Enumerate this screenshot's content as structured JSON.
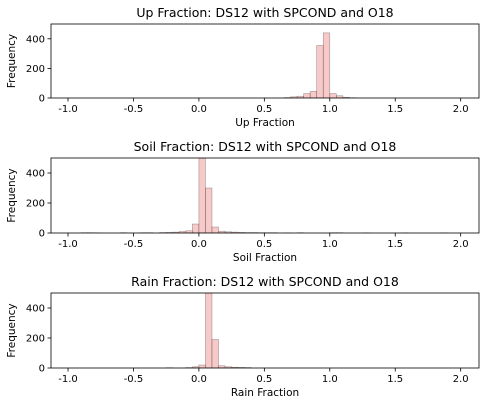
{
  "chart_data": [
    {
      "type": "bar",
      "title": "Up Fraction: DS12 with SPCOND and O18",
      "xlabel": "Up Fraction",
      "ylabel": "Frequency",
      "xlim": [
        -1.13,
        2.14
      ],
      "ylim": [
        0,
        500
      ],
      "xticks": [
        "-1.0",
        "-0.5",
        "0.0",
        "0.5",
        "1.0",
        "1.5",
        "2.0"
      ],
      "yticks": [
        "0",
        "200",
        "400"
      ],
      "bin_width": 0.05,
      "series": [
        {
          "bins": [
            [
              0.65,
              3
            ],
            [
              0.7,
              8
            ],
            [
              0.75,
              12
            ],
            [
              0.8,
              30
            ],
            [
              0.85,
              45
            ],
            [
              0.9,
              355
            ],
            [
              0.95,
              440
            ],
            [
              1.0,
              30
            ],
            [
              1.05,
              15
            ],
            [
              1.1,
              5
            ],
            [
              1.15,
              2
            ]
          ]
        }
      ],
      "bar_color": "#f4a5a5"
    },
    {
      "type": "bar",
      "title": "Soil Fraction: DS12 with SPCOND and O18",
      "xlabel": "Soil Fraction",
      "ylabel": "Frequency",
      "xlim": [
        -1.13,
        2.14
      ],
      "ylim": [
        0,
        500
      ],
      "xticks": [
        "-1.0",
        "-0.5",
        "0.0",
        "0.5",
        "1.0",
        "1.5",
        "2.0"
      ],
      "yticks": [
        "0",
        "200",
        "400"
      ],
      "bin_width": 0.05,
      "series": [
        {
          "bins": [
            [
              -0.9,
              2
            ],
            [
              -0.85,
              2
            ],
            [
              -0.8,
              1
            ],
            [
              -0.6,
              2
            ],
            [
              -0.45,
              2
            ],
            [
              -0.4,
              2
            ],
            [
              -0.3,
              3
            ],
            [
              -0.25,
              4
            ],
            [
              -0.2,
              6
            ],
            [
              -0.15,
              10
            ],
            [
              -0.1,
              15
            ],
            [
              -0.05,
              60
            ],
            [
              0.0,
              500
            ],
            [
              0.05,
              300
            ],
            [
              0.1,
              40
            ],
            [
              0.15,
              12
            ],
            [
              0.2,
              8
            ],
            [
              0.25,
              6
            ],
            [
              0.3,
              4
            ],
            [
              0.35,
              3
            ],
            [
              0.4,
              3
            ],
            [
              0.45,
              2
            ],
            [
              0.5,
              2
            ],
            [
              0.55,
              2
            ],
            [
              0.65,
              1
            ],
            [
              0.75,
              2
            ],
            [
              1.0,
              2
            ],
            [
              1.05,
              2
            ],
            [
              1.25,
              1
            ],
            [
              1.55,
              1
            ],
            [
              1.85,
              1
            ]
          ]
        }
      ],
      "bar_color": "#f4a5a5"
    },
    {
      "type": "bar",
      "title": "Rain Fraction: DS12 with SPCOND and O18",
      "xlabel": "Rain Fraction",
      "ylabel": "Frequency",
      "xlim": [
        -1.13,
        2.14
      ],
      "ylim": [
        0,
        500
      ],
      "xticks": [
        "-1.0",
        "-0.5",
        "0.0",
        "0.5",
        "1.0",
        "1.5",
        "2.0"
      ],
      "yticks": [
        "0",
        "200",
        "400"
      ],
      "bin_width": 0.05,
      "series": [
        {
          "bins": [
            [
              -0.25,
              2
            ],
            [
              -0.1,
              3
            ],
            [
              -0.05,
              8
            ],
            [
              0.0,
              20
            ],
            [
              0.05,
              500
            ],
            [
              0.1,
              190
            ],
            [
              0.15,
              15
            ],
            [
              0.2,
              8
            ],
            [
              0.25,
              5
            ],
            [
              0.3,
              4
            ],
            [
              0.35,
              3
            ]
          ]
        }
      ],
      "bar_color": "#f4a5a5"
    }
  ]
}
